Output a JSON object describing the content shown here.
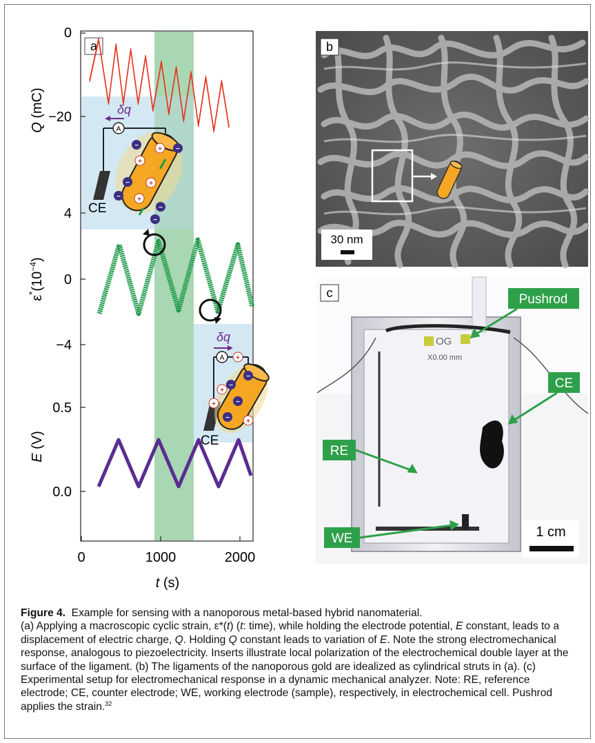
{
  "panel_a": {
    "label": "a",
    "q_axis": {
      "label_var": "Q",
      "label_unit": "(mC)",
      "ticks": [
        "0",
        "−20"
      ]
    },
    "strain_axis": {
      "label_var": "ε",
      "label_sup": "*",
      "label_unit": "(10",
      "label_exp": "−4",
      "label_close": ")",
      "ticks": [
        "4",
        "0",
        "−4"
      ]
    },
    "e_axis": {
      "label_var": "E",
      "label_unit": "(V)",
      "ticks": [
        "0.5",
        "0.0"
      ]
    },
    "x_axis": {
      "label_var": "t",
      "label_unit": "(s)",
      "ticks": [
        "0",
        "1000",
        "2000"
      ]
    },
    "inset_top": {
      "delta_q": "δq",
      "ammeter": "A",
      "ce": "CE"
    },
    "inset_bottom": {
      "delta_q": "δq",
      "ammeter": "A",
      "ce": "CE"
    },
    "colors": {
      "charge": "#e8321e",
      "strain": "#1e9a4a",
      "potential": "#5a2d91",
      "band": "#8cc99a",
      "inset_bg": "#cfe6f3",
      "strut": "#f5a623"
    }
  },
  "panel_b": {
    "label": "b",
    "scale_bar": "30 nm"
  },
  "panel_c": {
    "label": "c",
    "callouts": {
      "pushrod": "Pushrod",
      "ce": "CE",
      "re": "RE",
      "we": "WE"
    },
    "og_label": "OG",
    "ruler_text": "X0.00 mm",
    "scale_bar": "1 cm"
  },
  "caption": {
    "figure_label": "Figure 4.",
    "title": "Example for sensing with a nanoporous metal-based hybrid nanomaterial.",
    "a_1": "(a) Applying a macroscopic cyclic strain, ε*(",
    "a_t1": "t",
    "a_2": ") (",
    "a_t2": "t",
    "a_3": ": time), while holding the electrode potential,",
    "a_E1": "E",
    "a_4": " constant, leads to a displacement of electric charge, ",
    "a_Q1": "Q",
    "a_5": ". Holding ",
    "a_Q2": "Q",
    "a_6": " constant leads to variation of ",
    "a_E2": "E",
    "a_7": ". Note the strong electromechanical response, analogous to piezoelectricity. Inserts illustrate local polarization of the electrochemical double layer at the surface of the ligament.",
    "b": "(b) The ligaments of the nanoporous gold are idealized as cylindrical struts in (a).",
    "c": "(c) Experimental setup for electromechanical response in a dynamic mechanical analyzer. Note: RE, reference electrode; CE, counter electrode; WE, working electrode (sample), respectively, in electrochemical cell. Pushrod applies the strain.",
    "ref": "32"
  }
}
